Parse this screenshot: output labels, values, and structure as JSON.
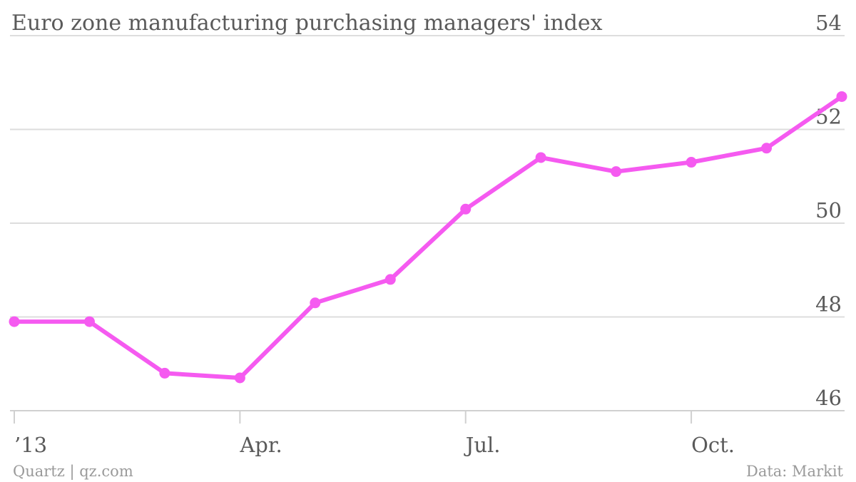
{
  "chart_data": {
    "type": "line",
    "title": "Euro zone manufacturing purchasing managers' index",
    "xlabel": "",
    "ylabel": "",
    "x": [
      "2013-01",
      "2013-02",
      "2013-03",
      "2013-04",
      "2013-05",
      "2013-06",
      "2013-07",
      "2013-08",
      "2013-09",
      "2013-10",
      "2013-11",
      "2013-12"
    ],
    "series": [
      {
        "values": [
          47.9,
          47.9,
          46.8,
          46.7,
          48.3,
          48.8,
          50.3,
          51.4,
          51.1,
          51.3,
          51.6,
          52.7
        ]
      }
    ],
    "ylim": [
      46,
      54
    ],
    "y_ticks": [
      "46",
      "48",
      "50",
      "52",
      "54"
    ],
    "x_ticks": [
      {
        "label": "’13",
        "at": "2013-01"
      },
      {
        "label": "Apr.",
        "at": "2013-04"
      },
      {
        "label": "Jul.",
        "at": "2013-07"
      },
      {
        "label": "Oct.",
        "at": "2013-10"
      }
    ],
    "grid": true,
    "y_axis_side": "right",
    "line_color": "#f55af0"
  },
  "footer": {
    "left": "Quartz | qz.com",
    "right": "Data: Markit"
  }
}
